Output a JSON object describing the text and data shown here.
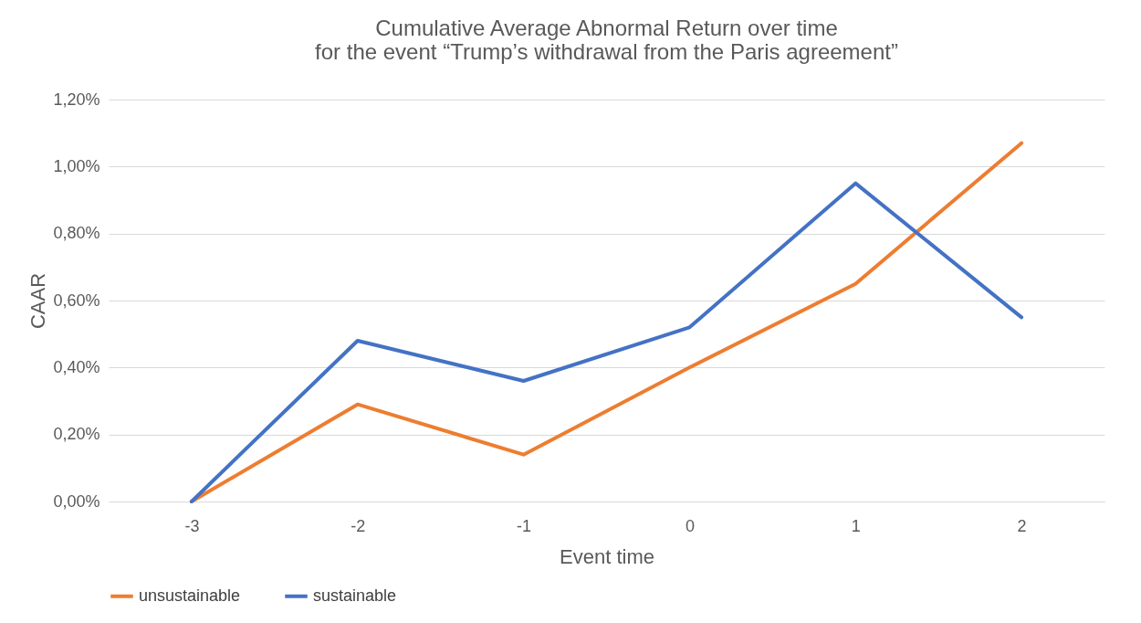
{
  "chart_data": {
    "type": "line",
    "title": "Cumulative Average Abnormal Return over time\nfor the event “Trump’s withdrawal from the Paris agreement”",
    "xlabel": "Event time",
    "ylabel": "CAAR",
    "categories": [
      "-3",
      "-2",
      "-1",
      "0",
      "1",
      "2"
    ],
    "series": [
      {
        "name": "unsustainable",
        "color": "#ed7d31",
        "values": [
          0,
          0.29,
          0.14,
          0.4,
          0.65,
          1.07
        ]
      },
      {
        "name": "sustainable",
        "color": "#4472c4",
        "values": [
          0,
          0.48,
          0.36,
          0.52,
          0.95,
          0.55
        ]
      }
    ],
    "ylim": [
      0,
      1.2
    ],
    "yticks": [
      {
        "value": 0,
        "label": "0,00%"
      },
      {
        "value": 0.2,
        "label": "0,20%"
      },
      {
        "value": 0.4,
        "label": "0,40%"
      },
      {
        "value": 0.6,
        "label": "0,60%"
      },
      {
        "value": 0.8,
        "label": "0,80%"
      },
      {
        "value": 1.0,
        "label": "1,00%"
      },
      {
        "value": 1.2,
        "label": "1,20%"
      }
    ],
    "grid": "y",
    "legend": "bottom",
    "line_style": "solid"
  }
}
